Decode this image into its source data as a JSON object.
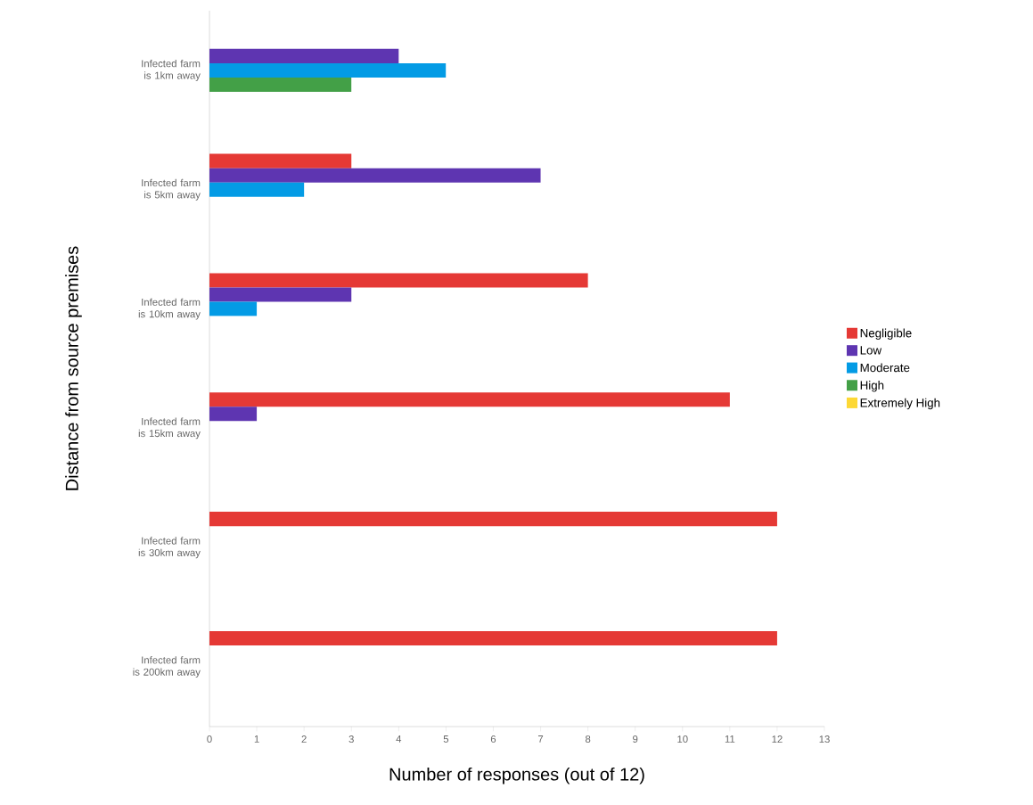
{
  "chart_data": {
    "type": "bar",
    "orientation": "horizontal",
    "xlabel": "Number of responses (out of 12)",
    "ylabel": "Distance from source premises",
    "categories": [
      "Infected farm is 1km away",
      "Infected farm is 5km away",
      "Infected farm is 10km away",
      "Infected farm is 15km away",
      "Infected farm is 30km away",
      "Infected farm is 200km away"
    ],
    "series": [
      {
        "name": "Negligible",
        "color": "#e53935",
        "values": [
          null,
          3,
          8,
          11,
          12,
          12
        ]
      },
      {
        "name": "Low",
        "color": "#5e35b1",
        "values": [
          4,
          7,
          3,
          1,
          null,
          null
        ]
      },
      {
        "name": "Moderate",
        "color": "#039be5",
        "values": [
          5,
          2,
          1,
          null,
          null,
          null
        ]
      },
      {
        "name": "High",
        "color": "#43a047",
        "values": [
          3,
          null,
          null,
          null,
          null,
          null
        ]
      },
      {
        "name": "Extremely High",
        "color": "#fdd835",
        "values": [
          null,
          null,
          null,
          null,
          null,
          null
        ]
      }
    ],
    "xlim": [
      0,
      13
    ],
    "xticks": [
      0,
      1,
      2,
      3,
      4,
      5,
      6,
      7,
      8,
      9,
      10,
      11,
      12,
      13
    ],
    "legend": "right"
  }
}
